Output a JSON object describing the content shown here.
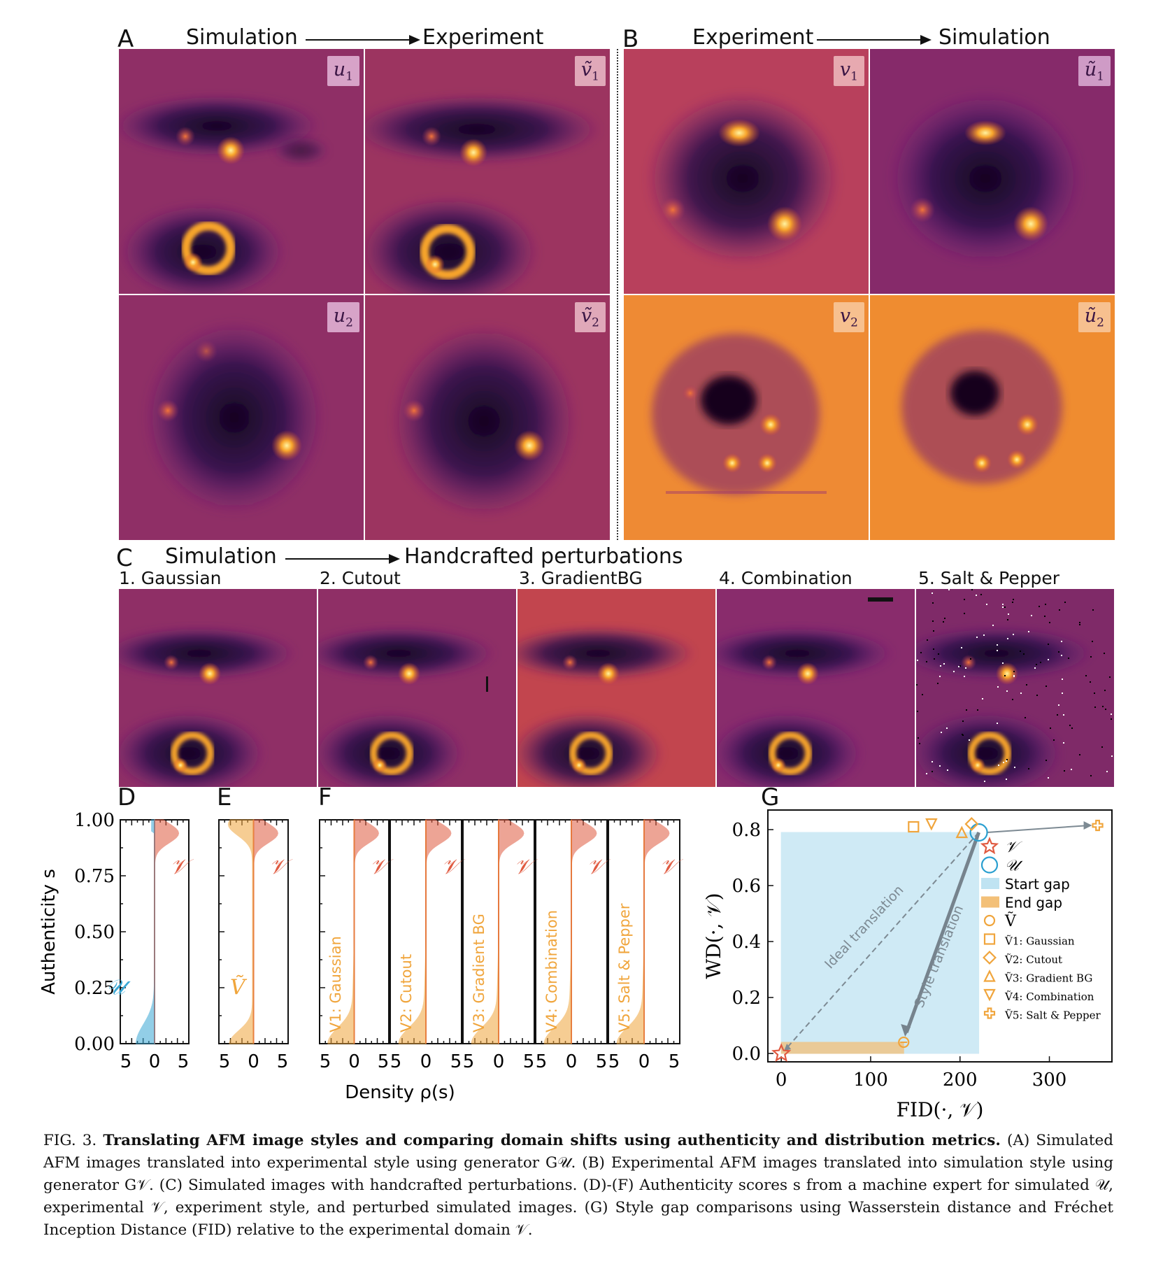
{
  "panels": {
    "A": {
      "letter": "A",
      "from": "Simulation",
      "to": "Experiment",
      "tags": [
        "u",
        "ṽ",
        "u",
        "ṽ"
      ],
      "subs": [
        "1",
        "1",
        "2",
        "2"
      ]
    },
    "B": {
      "letter": "B",
      "from": "Experiment",
      "to": "Simulation",
      "tags": [
        "v",
        "ũ",
        "v",
        "ũ"
      ],
      "subs": [
        "1",
        "1",
        "2",
        "2"
      ]
    },
    "C": {
      "letter": "C",
      "from": "Simulation",
      "to": "Handcrafted perturbations",
      "subtitles": [
        "1. Gaussian",
        "2. Cutout",
        "3. GradientBG",
        "4. Combination",
        "5. Salt & Pepper"
      ]
    }
  },
  "density": {
    "D_letter": "D",
    "E_letter": "E",
    "F_letter": "F",
    "ylabel": "Authenticity s",
    "xlabel": "Density ρ(s)",
    "yticks": [
      "1.00",
      "0.75",
      "0.50",
      "0.25",
      "0.00"
    ],
    "xticks": [
      "5",
      "0",
      "5"
    ],
    "D_labels": [
      "𝒱",
      "𝒰"
    ],
    "E_labels": [
      "𝒱",
      "Ṽ"
    ],
    "F_labels": [
      "V1: Gaussian",
      "V2: Cutout",
      "V3: Gradient BG",
      "V4: Combination",
      "V5: Salt & Pepper"
    ],
    "F_top_label": "𝒱",
    "colors": {
      "V": "#e05a40",
      "U": "#3aa7d4",
      "Vt": "#f0a53c"
    }
  },
  "chart_data": {
    "type": "scatter",
    "panel": "G",
    "xlabel": "FID(·, 𝒱)",
    "ylabel": "WD(·, 𝒱)",
    "xlim": [
      -15,
      370
    ],
    "ylim": [
      -0.03,
      0.87
    ],
    "xticks": [
      0,
      100,
      200,
      300
    ],
    "yticks": [
      0.0,
      0.2,
      0.4,
      0.6,
      0.8
    ],
    "series": [
      {
        "name": "𝒱",
        "marker": "star",
        "color": "#e05a40",
        "x": [
          0
        ],
        "y": [
          0.0
        ]
      },
      {
        "name": "𝒰",
        "marker": "circle",
        "color": "#2a9fd0",
        "x": [
          221
        ],
        "y": [
          0.79
        ]
      },
      {
        "name": "Ṽ",
        "marker": "circle",
        "color": "#f0a53c",
        "x": [
          137
        ],
        "y": [
          0.04
        ]
      },
      {
        "name": "Ṽ1: Gaussian",
        "marker": "square",
        "color": "#f0a53c",
        "x": [
          148
        ],
        "y": [
          0.81
        ]
      },
      {
        "name": "Ṽ2: Cutout",
        "marker": "diamond",
        "color": "#f0a53c",
        "x": [
          213
        ],
        "y": [
          0.82
        ]
      },
      {
        "name": "Ṽ3: Gradient BG",
        "marker": "triangle-up",
        "color": "#f0a53c",
        "x": [
          202
        ],
        "y": [
          0.79
        ]
      },
      {
        "name": "Ṽ4: Combination",
        "marker": "triangle-down",
        "color": "#f0a53c",
        "x": [
          168
        ],
        "y": [
          0.82
        ]
      },
      {
        "name": "Ṽ5: Salt & Pepper",
        "marker": "plus",
        "color": "#f0a53c",
        "x": [
          354
        ],
        "y": [
          0.815
        ]
      }
    ],
    "regions": [
      {
        "name": "Start gap",
        "x": [
          0,
          221
        ],
        "y": [
          0,
          0.79
        ],
        "color": "#bfe3f2"
      },
      {
        "name": "End gap",
        "x": [
          0,
          137
        ],
        "y": [
          0,
          0.04
        ],
        "color": "#f3c078"
      }
    ],
    "annotations": [
      "Ideal translation",
      "Style translation"
    ],
    "legend": "right"
  },
  "caption": {
    "fig": "FIG. 3.",
    "title": "Translating AFM image styles and comparing domain shifts using authenticity and distribution metrics.",
    "body": "(A) Simulated AFM images translated into experimental style using generator G𝒰. (B) Experimental AFM images translated into simulation style using generator G𝒱. (C) Simulated images with handcrafted perturbations. (D)-(F) Authenticity scores s from a machine expert for simulated 𝒰, experimental 𝒱, experiment style, and perturbed simulated images. (G) Style gap comparisons using Wasserstein distance and Fréchet Inception Distance (FID) relative to the experimental domain 𝒱."
  }
}
